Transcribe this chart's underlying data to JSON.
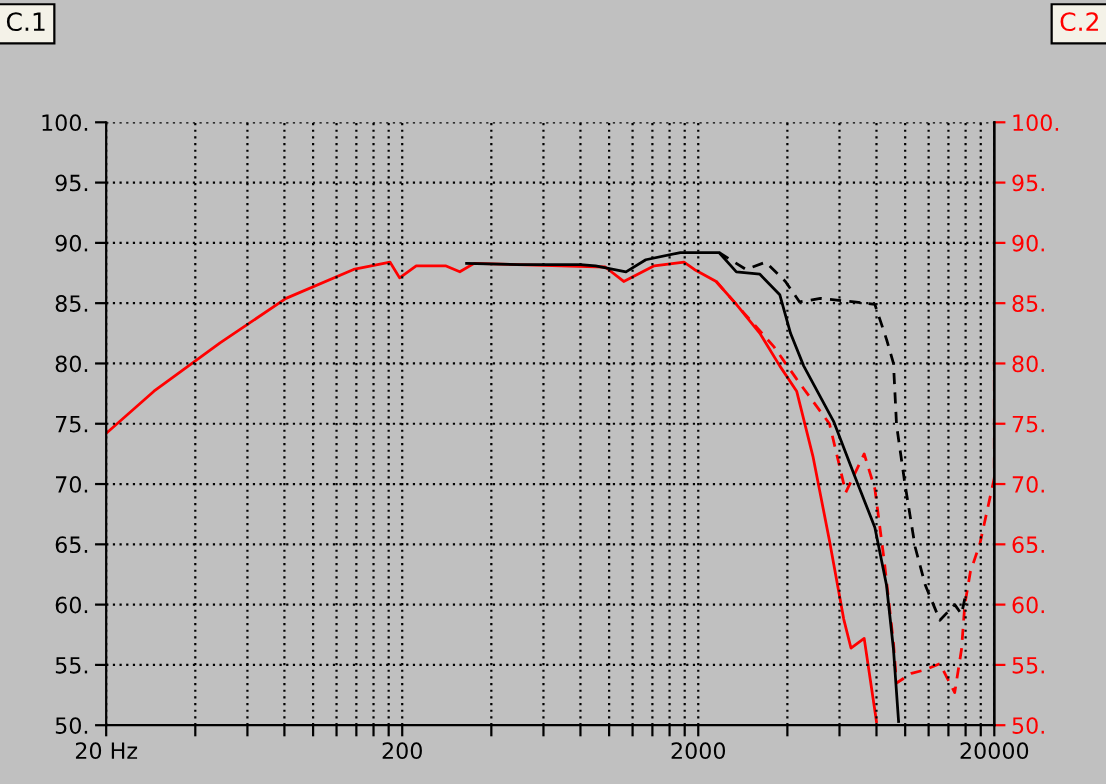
{
  "chart_data": {
    "type": "line",
    "log": "x",
    "grid": true,
    "marker": "none",
    "annotations": [
      "C.1",
      "C.2"
    ],
    "xlim": [
      20,
      20000
    ],
    "xticks": [
      {
        "value": 20,
        "label": "20 Hz"
      },
      {
        "value": 40,
        "label": null
      },
      {
        "value": 60,
        "label": null
      },
      {
        "value": 80,
        "label": null
      },
      {
        "value": 100,
        "label": null
      },
      {
        "value": 120,
        "label": null
      },
      {
        "value": 140,
        "label": null
      },
      {
        "value": 160,
        "label": null
      },
      {
        "value": 180,
        "label": null
      },
      200,
      {
        "value": 400,
        "label": null
      },
      {
        "value": 600,
        "label": null
      },
      {
        "value": 800,
        "label": null
      },
      {
        "value": 1000,
        "label": null
      },
      {
        "value": 1200,
        "label": null
      },
      {
        "value": 1400,
        "label": null
      },
      {
        "value": 1600,
        "label": null
      },
      {
        "value": 1800,
        "label": null
      },
      2000,
      {
        "value": 4000,
        "label": null
      },
      {
        "value": 6000,
        "label": null
      },
      {
        "value": 8000,
        "label": null
      },
      {
        "value": 10000,
        "label": null
      },
      {
        "value": 12000,
        "label": null
      },
      {
        "value": 14000,
        "label": null
      },
      {
        "value": 16000,
        "label": null
      },
      {
        "value": 18000,
        "label": null
      },
      20000
    ],
    "ylim": [
      50,
      100
    ],
    "yticks": [
      {
        "value": 50,
        "label": "50."
      },
      {
        "value": 55,
        "label": "55."
      },
      {
        "value": 60,
        "label": "60."
      },
      {
        "value": 65,
        "label": "65."
      },
      {
        "value": 70,
        "label": "70."
      },
      {
        "value": 75,
        "label": "75."
      },
      {
        "value": 80,
        "label": "80."
      },
      {
        "value": 85,
        "label": "85."
      },
      {
        "value": 90,
        "label": "90."
      },
      {
        "value": 95,
        "label": "95."
      },
      {
        "value": 100,
        "label": "100."
      }
    ],
    "y2lim": [
      50,
      100
    ],
    "y2ticks": [
      {
        "value": 50,
        "label": "50."
      },
      {
        "value": 55,
        "label": "55."
      },
      {
        "value": 60,
        "label": "60."
      },
      {
        "value": 65,
        "label": "65."
      },
      {
        "value": 70,
        "label": "70."
      },
      {
        "value": 75,
        "label": "75."
      },
      {
        "value": 80,
        "label": "80."
      },
      {
        "value": 85,
        "label": "85."
      },
      {
        "value": 90,
        "label": "90."
      },
      {
        "value": 95,
        "label": "95."
      },
      {
        "value": 100,
        "label": "100."
      }
    ],
    "series": [
      {
        "color": "#ff0000",
        "axis": "y2",
        "line_style": "solid",
        "x": [
          20,
          29,
          48.5,
          81,
          137,
          182,
          196,
          223,
          280,
          313,
          350,
          970,
          1120,
          1420,
          1790,
          1940,
          2300,
          2690,
          3230,
          3770,
          4300,
          4880,
          5550,
          6200,
          6560,
          7270,
          8000
        ],
        "values": [
          74.2,
          77.7,
          81.7,
          85.4,
          87.8,
          88.4,
          87.1,
          88.1,
          88.1,
          87.6,
          88.3,
          88,
          86.8,
          88.1,
          88.4,
          87.8,
          86.8,
          84.9,
          82.5,
          79.8,
          77.7,
          72.3,
          65.3,
          58.8,
          56.4,
          57.2,
          50.3
        ]
      },
      {
        "color": "#ff0000",
        "axis": "y2",
        "line_style": "dashed",
        "x": [
          2300,
          2850,
          3600,
          4300,
          5550,
          6300,
          7270,
          7900,
          8500,
          9130,
          9350,
          10500,
          11700,
          13100,
          14700,
          15500,
          15900,
          16600,
          17900,
          20000,
          20000
        ],
        "values": [
          86.8,
          84.2,
          81.4,
          78.7,
          75,
          69.3,
          72.5,
          69.6,
          63.6,
          56.8,
          53.5,
          54.3,
          54.6,
          55.1,
          52.7,
          56.3,
          60,
          62.7,
          65.1,
          70.5,
          80.5
        ]
      },
      {
        "color": "#000000",
        "axis": "y",
        "line_style": "solid",
        "x": [
          330,
          500,
          800,
          900,
          1140,
          1330,
          1740,
          2350,
          2690,
          3230,
          3770,
          4100,
          4540,
          5730,
          6720,
          7900,
          8650,
          9130,
          9500
        ],
        "values": [
          88.3,
          88.2,
          88.2,
          88.1,
          87.6,
          88.6,
          89.2,
          89.2,
          87.6,
          87.4,
          85.7,
          82.5,
          79.8,
          75.2,
          70.8,
          66.4,
          61.6,
          56.3,
          50.3
        ]
      },
      {
        "color": "#000000",
        "axis": "y",
        "line_style": "dashed",
        "x": [
          2350,
          2900,
          3380,
          3940,
          4400,
          5170,
          6720,
          7900,
          8650,
          9130,
          9350,
          9970,
          10800,
          11700,
          13100,
          14700,
          15500,
          15900
        ],
        "values": [
          89.2,
          87.8,
          88.4,
          86.8,
          85.1,
          85.4,
          85.1,
          84.9,
          82,
          80,
          74.9,
          70.1,
          64.8,
          61.6,
          58.7,
          60,
          59.2,
          60.5
        ]
      }
    ]
  }
}
